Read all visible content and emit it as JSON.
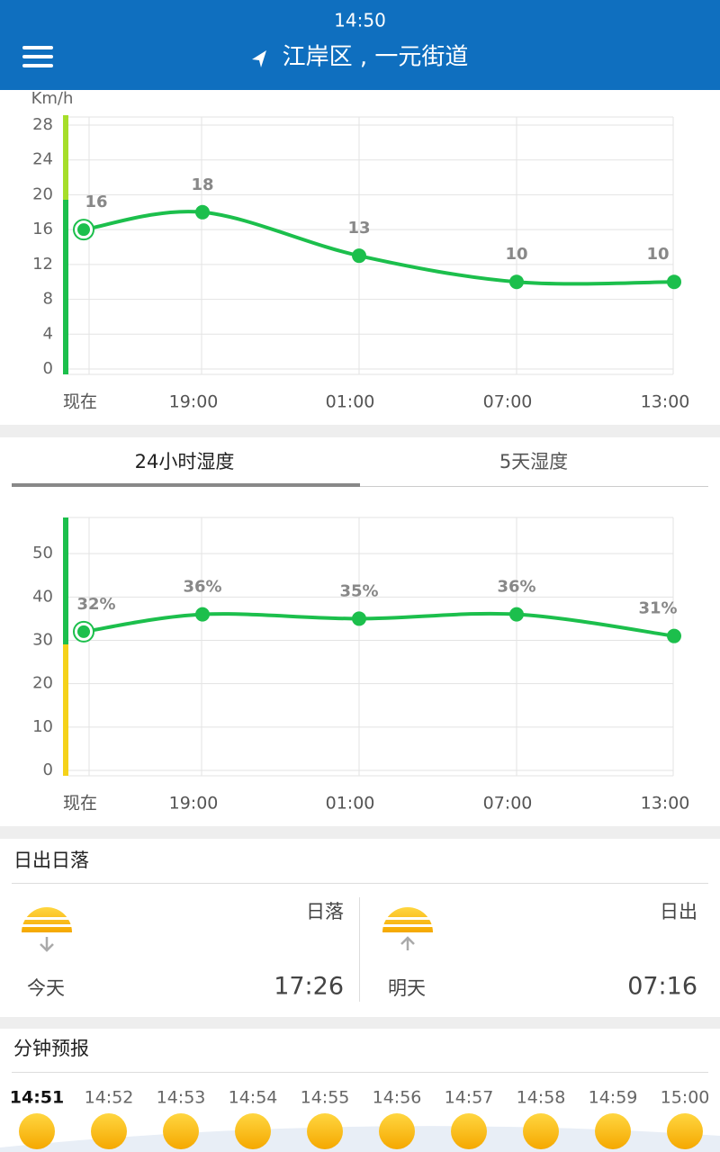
{
  "header": {
    "time": "14:50",
    "location": "江岸区 , 一元街道"
  },
  "wind_chart": {
    "type": "line",
    "unit": "Km/h",
    "categories": [
      "现在",
      "19:00",
      "01:00",
      "07:00",
      "13:00"
    ],
    "values": [
      16,
      18,
      13,
      10,
      10
    ],
    "color": "#1cbf4c",
    "ylim": [
      0,
      28
    ],
    "yticks": [
      0,
      4,
      8,
      12,
      16,
      20,
      24,
      28
    ],
    "grid": true
  },
  "humidity_tabs": [
    "24小时湿度",
    "5天湿度"
  ],
  "humidity_chart": {
    "type": "line",
    "categories": [
      "现在",
      "19:00",
      "01:00",
      "07:00",
      "13:00"
    ],
    "values": [
      32,
      36,
      35,
      36,
      31
    ],
    "value_labels": [
      "32%",
      "36%",
      "35%",
      "36%",
      "31%"
    ],
    "color": "#1cbf4c",
    "ylim": [
      0,
      60
    ],
    "yticks": [
      0,
      10,
      20,
      30,
      40,
      50
    ],
    "grid": true
  },
  "sun": {
    "title": "日出日落",
    "sunset": {
      "label": "日落",
      "day": "今天",
      "time": "17:26"
    },
    "sunrise": {
      "label": "日出",
      "day": "明天",
      "time": "07:16"
    }
  },
  "minute_forecast": {
    "title": "分钟预报",
    "times": [
      "14:51",
      "14:52",
      "14:53",
      "14:54",
      "14:55",
      "14:56",
      "14:57",
      "14:58",
      "14:59",
      "15:00"
    ]
  }
}
